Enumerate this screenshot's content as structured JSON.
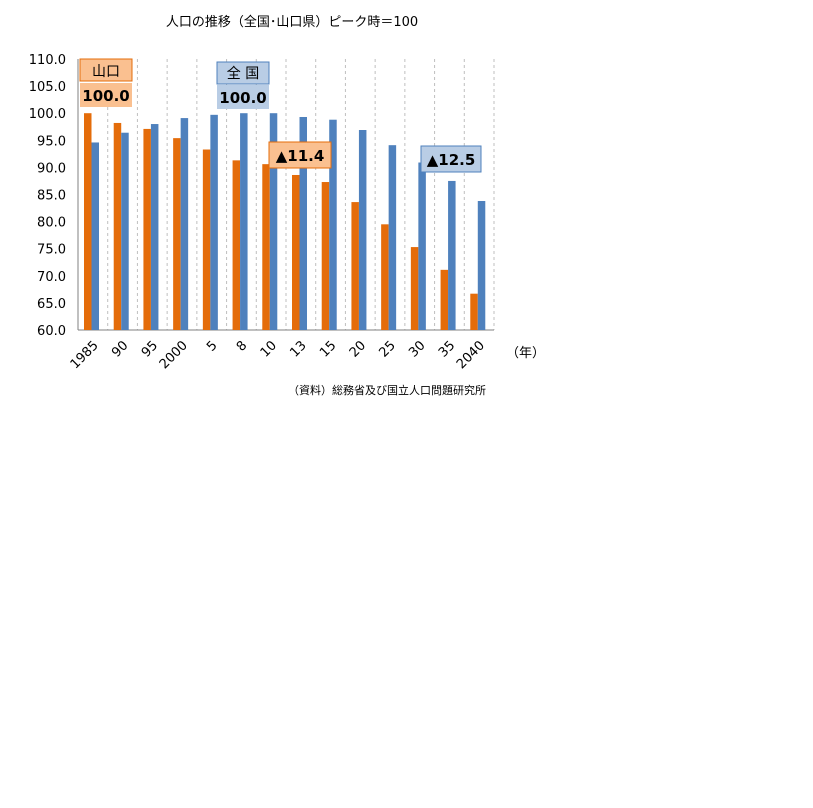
{
  "chart_data": {
    "type": "bar",
    "title": "人口の推移（全国･山口県）ピーク時＝100",
    "categories": [
      "1985",
      "90",
      "95",
      "2000",
      "5",
      "8",
      "10",
      "13",
      "15",
      "20",
      "25",
      "30",
      "35",
      "2040"
    ],
    "series": [
      {
        "name": "山口",
        "color": "#E46C0A",
        "values": [
          100.0,
          98.2,
          97.1,
          95.4,
          93.3,
          91.3,
          90.6,
          88.6,
          87.3,
          83.6,
          79.5,
          75.3,
          71.1,
          66.7
        ]
      },
      {
        "name": "全国",
        "color": "#4F81BD",
        "values": [
          94.6,
          96.4,
          98.0,
          99.1,
          99.7,
          100.0,
          100.0,
          99.3,
          98.8,
          96.9,
          94.1,
          90.9,
          87.5,
          83.8
        ]
      }
    ],
    "ylim": [
      60.0,
      110.0
    ],
    "yticks": [
      "110.0",
      "105.0",
      "100.0",
      "95.0",
      "90.0",
      "85.0",
      "80.0",
      "75.0",
      "70.0",
      "65.0",
      "60.0"
    ],
    "x_unit": "（年）",
    "source": "（資料）総務省及び国立人口問題研究所",
    "grid": "vertical dashed",
    "annotations": {
      "yamaguchi_label": "山口",
      "yamaguchi_peak": "100.0",
      "national_label": "全 国",
      "national_peak": "100.0",
      "yamaguchi_drop": "▲11.4",
      "national_drop": "▲12.5"
    }
  }
}
